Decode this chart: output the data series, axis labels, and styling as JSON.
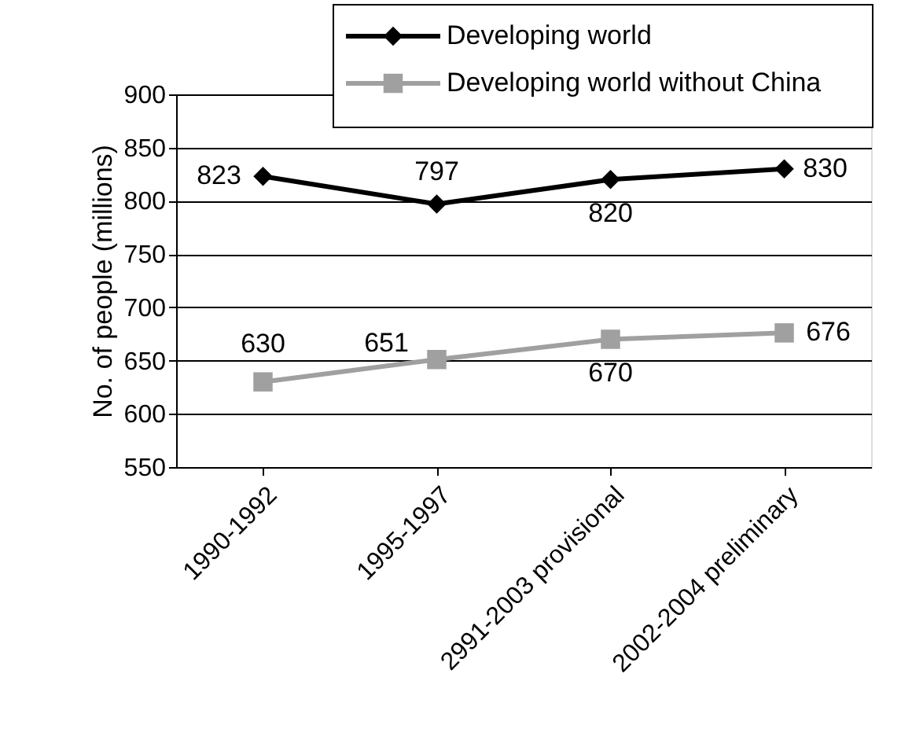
{
  "chart_data": {
    "type": "line",
    "ylabel": "No. of people (millions)",
    "categories": [
      "1990-1992",
      "1995-1997",
      "2991-2003 provisional",
      "2002-2004 preliminary"
    ],
    "series": [
      {
        "name": "Developing world",
        "color": "#000000",
        "marker": "diamond",
        "values": [
          823,
          797,
          820,
          830
        ]
      },
      {
        "name": "Developing world without China",
        "color": "#a0a0a0",
        "marker": "square",
        "values": [
          630,
          651,
          670,
          676
        ]
      }
    ],
    "ylim": [
      550,
      900
    ],
    "yticks": [
      550,
      600,
      650,
      700,
      750,
      800,
      850,
      900
    ],
    "grid": "y",
    "legend": "top right",
    "data_labels": true,
    "line_style": "solid"
  }
}
